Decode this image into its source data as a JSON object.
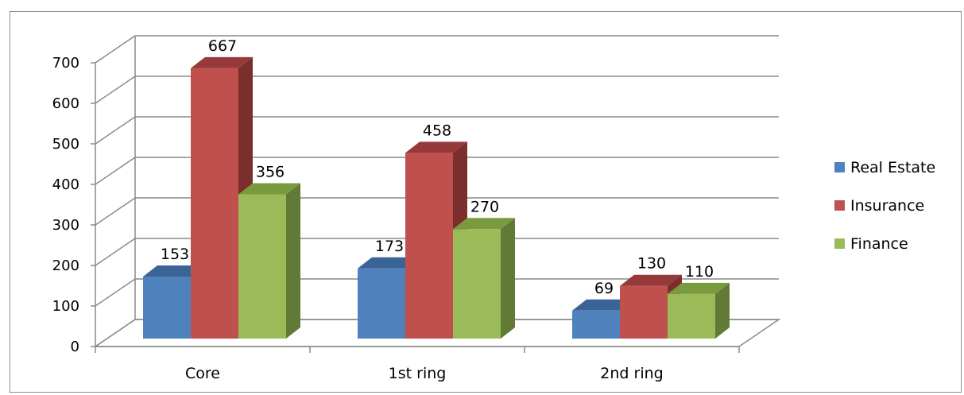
{
  "chart_data": {
    "type": "bar",
    "title": "",
    "xlabel": "",
    "ylabel": "",
    "categories": [
      "Core",
      "1st ring",
      "2nd ring"
    ],
    "series": [
      {
        "name": "Real Estate",
        "values": [
          153,
          173,
          69
        ],
        "color": "#4f81bd",
        "side_color": "#2c4d75",
        "top_color": "#3a6396"
      },
      {
        "name": "Insurance",
        "values": [
          667,
          458,
          130
        ],
        "color": "#c0504d",
        "side_color": "#7a2f2d",
        "top_color": "#96393a"
      },
      {
        "name": "Finance",
        "values": [
          356,
          270,
          110
        ],
        "color": "#9bbb59",
        "side_color": "#617a35",
        "top_color": "#7a9a40"
      }
    ],
    "ylim": [
      0,
      700
    ],
    "yticks": [
      0,
      100,
      200,
      300,
      400,
      500,
      600,
      700
    ],
    "grid": true,
    "style": "3d-clustered-column",
    "legend_position": "right"
  }
}
